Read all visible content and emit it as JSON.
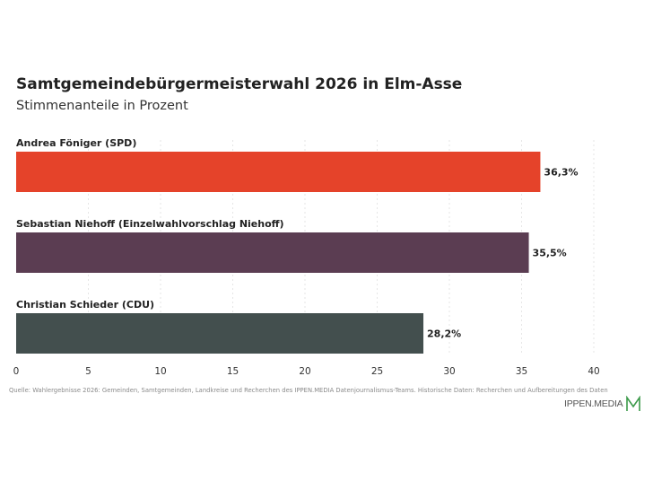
{
  "title": "Samtgemeindebürgermeisterwahl 2026 in Elm-Asse",
  "subtitle": "Stimmenanteile in Prozent",
  "source": "Quelle: Wahlergebnisse 2026: Gemeinden, Samtgemeinden, Landkreise und Recherchen des IPPEN.MEDIA Datenjournalismus-Teams. Historische Daten: Recherchen und Aufbereitungen des Daten",
  "logo_text": "IPPEN.MEDIA",
  "chart_data": {
    "type": "bar",
    "orientation": "horizontal",
    "categories": [
      "Andrea Föniger (SPD)",
      "Sebastian Niehoff (Einzelwahlvorschlag Niehoff)",
      "Christian Schieder (CDU)"
    ],
    "values": [
      36.3,
      35.5,
      28.2
    ],
    "value_labels": [
      "36,3%",
      "35,5%",
      "28,2%"
    ],
    "colors": [
      "#e5432a",
      "#5b3d52",
      "#434f4e"
    ],
    "xlim": [
      0,
      40
    ],
    "xticks": [
      0,
      5,
      10,
      15,
      20,
      25,
      30,
      35,
      40
    ],
    "grid": true
  },
  "colors": {
    "grid": "#e6e6e6",
    "logo_accent": "#3c9a4a"
  }
}
